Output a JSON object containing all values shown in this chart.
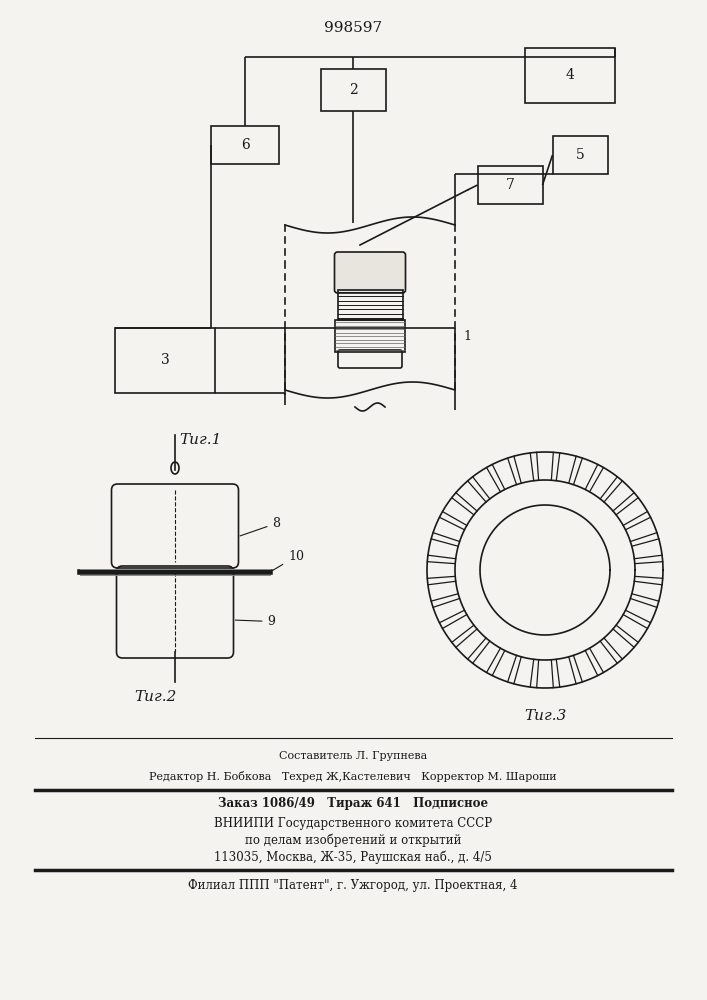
{
  "title": "998597",
  "fig1_label": "Τиг.1",
  "fig2_label": "Τиг.2",
  "fig3_label": "Τиг.3",
  "background": "#f5f3f0",
  "line_color": "#1a1a1a",
  "footer_lines": [
    "Составитель Л. Групнева",
    "Редактор Н. Бобкова   Техред Ж,Кастелевич   Корректор М. Шароши",
    "Заказ 1086/49   Тираж 641   Подписное",
    "ВНИИПИ Государственного комитета СССР",
    "по делам изобретений и открытий",
    "113035, Москва, Ж-35, Раушская наб., д. 4/5",
    "Филиал ППП \"Патент\", г. Ужгород, ул. Проектная, 4"
  ]
}
